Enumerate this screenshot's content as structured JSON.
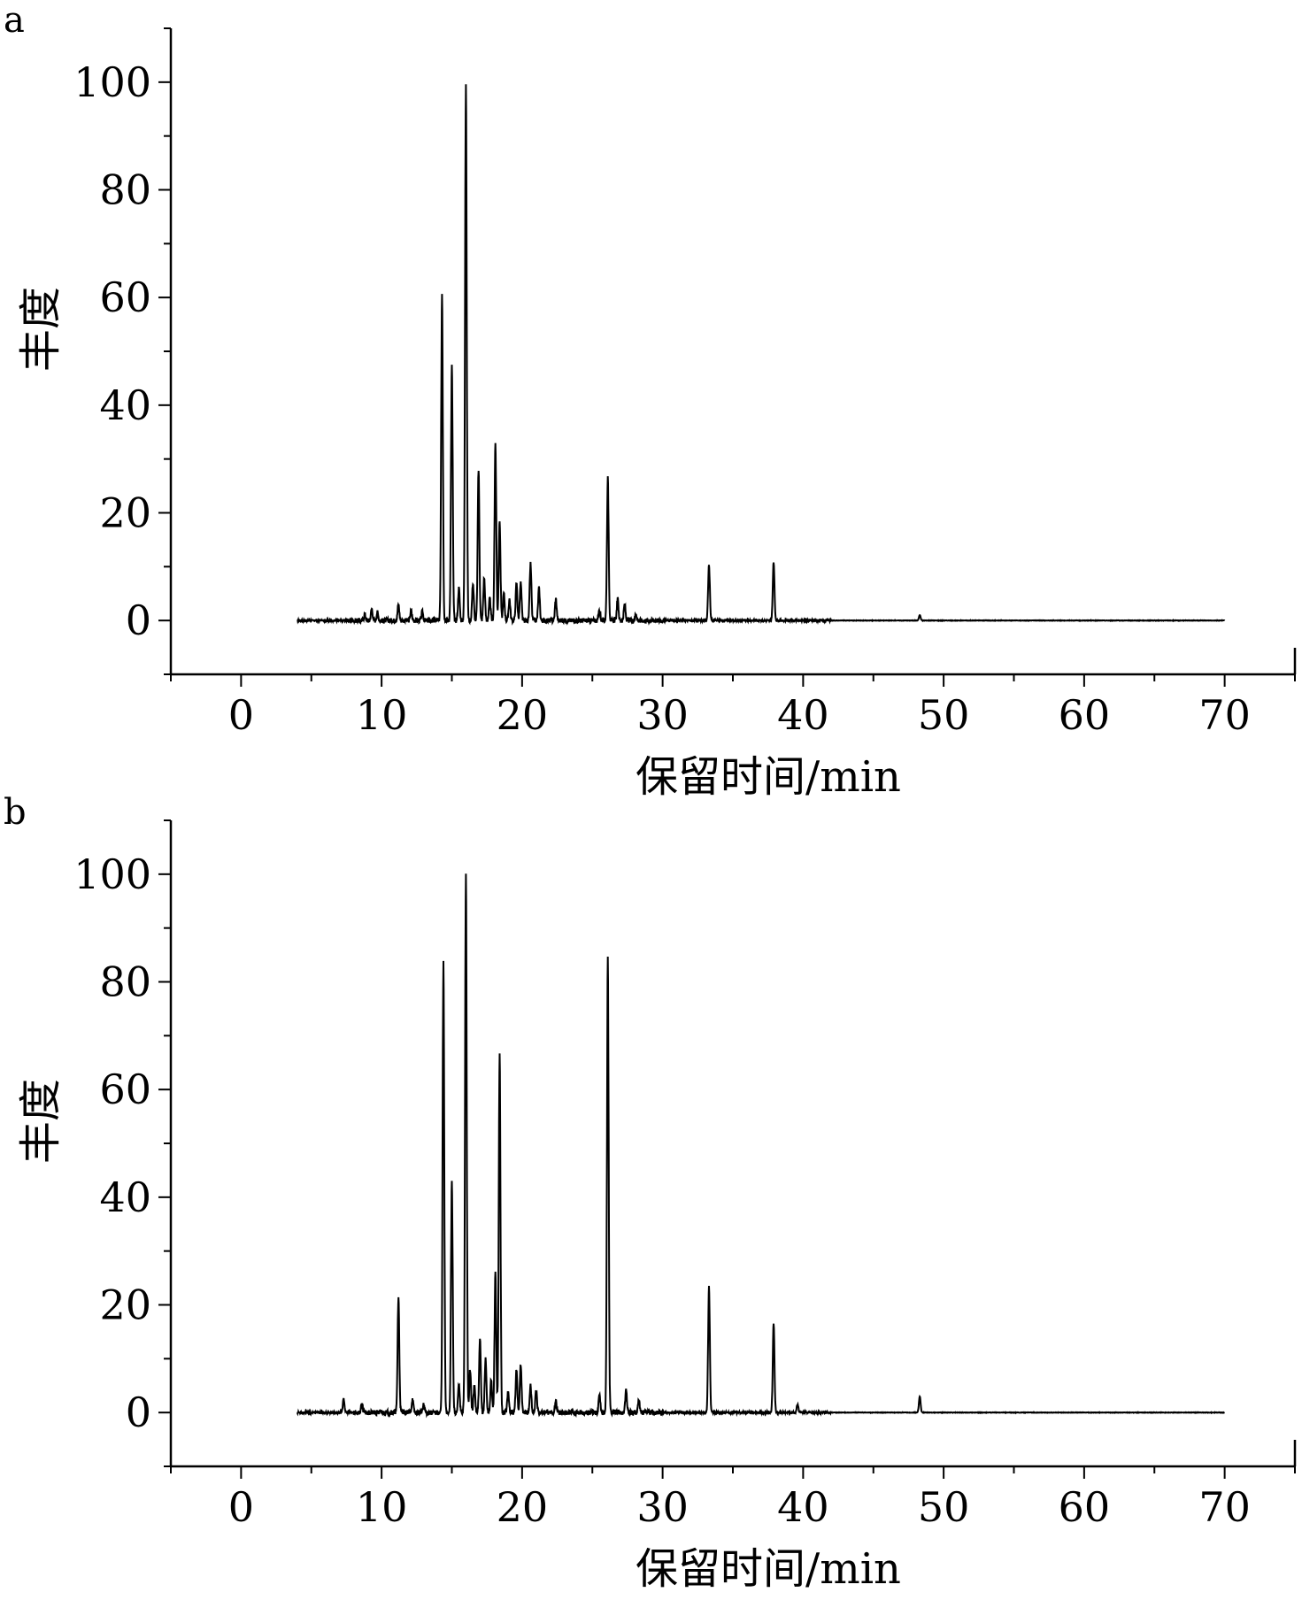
{
  "chart_data": [
    {
      "type": "line",
      "panel_label": "a",
      "xlabel": "保留时间/min",
      "ylabel": "丰度",
      "xlim": [
        -5,
        75
      ],
      "ylim": [
        -10,
        110
      ],
      "x_ticks": [
        0,
        10,
        20,
        30,
        40,
        50,
        60,
        70
      ],
      "y_ticks": [
        0,
        20,
        40,
        60,
        80,
        100
      ],
      "x_range_data": [
        4,
        70
      ],
      "peaks": [
        {
          "x": 8.8,
          "y": 1.2
        },
        {
          "x": 9.3,
          "y": 2.2
        },
        {
          "x": 9.7,
          "y": 1.5
        },
        {
          "x": 11.2,
          "y": 3.0
        },
        {
          "x": 12.1,
          "y": 1.8
        },
        {
          "x": 12.9,
          "y": 1.6
        },
        {
          "x": 14.3,
          "y": 61
        },
        {
          "x": 15.0,
          "y": 47.5
        },
        {
          "x": 15.5,
          "y": 6
        },
        {
          "x": 16.0,
          "y": 100
        },
        {
          "x": 16.5,
          "y": 7
        },
        {
          "x": 16.9,
          "y": 28
        },
        {
          "x": 17.3,
          "y": 8
        },
        {
          "x": 17.7,
          "y": 4
        },
        {
          "x": 18.1,
          "y": 33
        },
        {
          "x": 18.4,
          "y": 18.5
        },
        {
          "x": 18.7,
          "y": 5
        },
        {
          "x": 19.1,
          "y": 4
        },
        {
          "x": 19.6,
          "y": 7
        },
        {
          "x": 19.9,
          "y": 7
        },
        {
          "x": 20.6,
          "y": 10.5
        },
        {
          "x": 21.2,
          "y": 6
        },
        {
          "x": 22.4,
          "y": 4
        },
        {
          "x": 25.5,
          "y": 2
        },
        {
          "x": 26.1,
          "y": 26.5
        },
        {
          "x": 26.8,
          "y": 4
        },
        {
          "x": 27.3,
          "y": 3
        },
        {
          "x": 28.1,
          "y": 1.3
        },
        {
          "x": 33.3,
          "y": 10.5
        },
        {
          "x": 37.9,
          "y": 10.8
        },
        {
          "x": 48.3,
          "y": 1.0
        }
      ]
    },
    {
      "type": "line",
      "panel_label": "b",
      "xlabel": "保留时间/min",
      "ylabel": "丰度",
      "xlim": [
        -5,
        75
      ],
      "ylim": [
        -10,
        110
      ],
      "x_ticks": [
        0,
        10,
        20,
        30,
        40,
        50,
        60,
        70
      ],
      "y_ticks": [
        0,
        20,
        40,
        60,
        80,
        100
      ],
      "x_range_data": [
        4,
        70
      ],
      "peaks": [
        {
          "x": 7.3,
          "y": 2.5
        },
        {
          "x": 8.6,
          "y": 1.5
        },
        {
          "x": 11.2,
          "y": 21.5
        },
        {
          "x": 12.2,
          "y": 2.5
        },
        {
          "x": 13.0,
          "y": 1.5
        },
        {
          "x": 14.4,
          "y": 83.5
        },
        {
          "x": 15.0,
          "y": 43
        },
        {
          "x": 15.5,
          "y": 5
        },
        {
          "x": 16.0,
          "y": 100
        },
        {
          "x": 16.3,
          "y": 8
        },
        {
          "x": 16.6,
          "y": 5
        },
        {
          "x": 17.0,
          "y": 13.5
        },
        {
          "x": 17.4,
          "y": 10
        },
        {
          "x": 17.8,
          "y": 6
        },
        {
          "x": 18.1,
          "y": 26
        },
        {
          "x": 18.4,
          "y": 67
        },
        {
          "x": 19.0,
          "y": 4
        },
        {
          "x": 19.6,
          "y": 8
        },
        {
          "x": 19.9,
          "y": 9
        },
        {
          "x": 20.6,
          "y": 5
        },
        {
          "x": 21.0,
          "y": 4
        },
        {
          "x": 22.4,
          "y": 2
        },
        {
          "x": 25.5,
          "y": 3.5
        },
        {
          "x": 26.1,
          "y": 84.5
        },
        {
          "x": 27.4,
          "y": 4
        },
        {
          "x": 28.3,
          "y": 2.5
        },
        {
          "x": 33.3,
          "y": 23.5
        },
        {
          "x": 37.9,
          "y": 16.5
        },
        {
          "x": 39.6,
          "y": 1.5
        },
        {
          "x": 48.3,
          "y": 3
        }
      ]
    }
  ]
}
